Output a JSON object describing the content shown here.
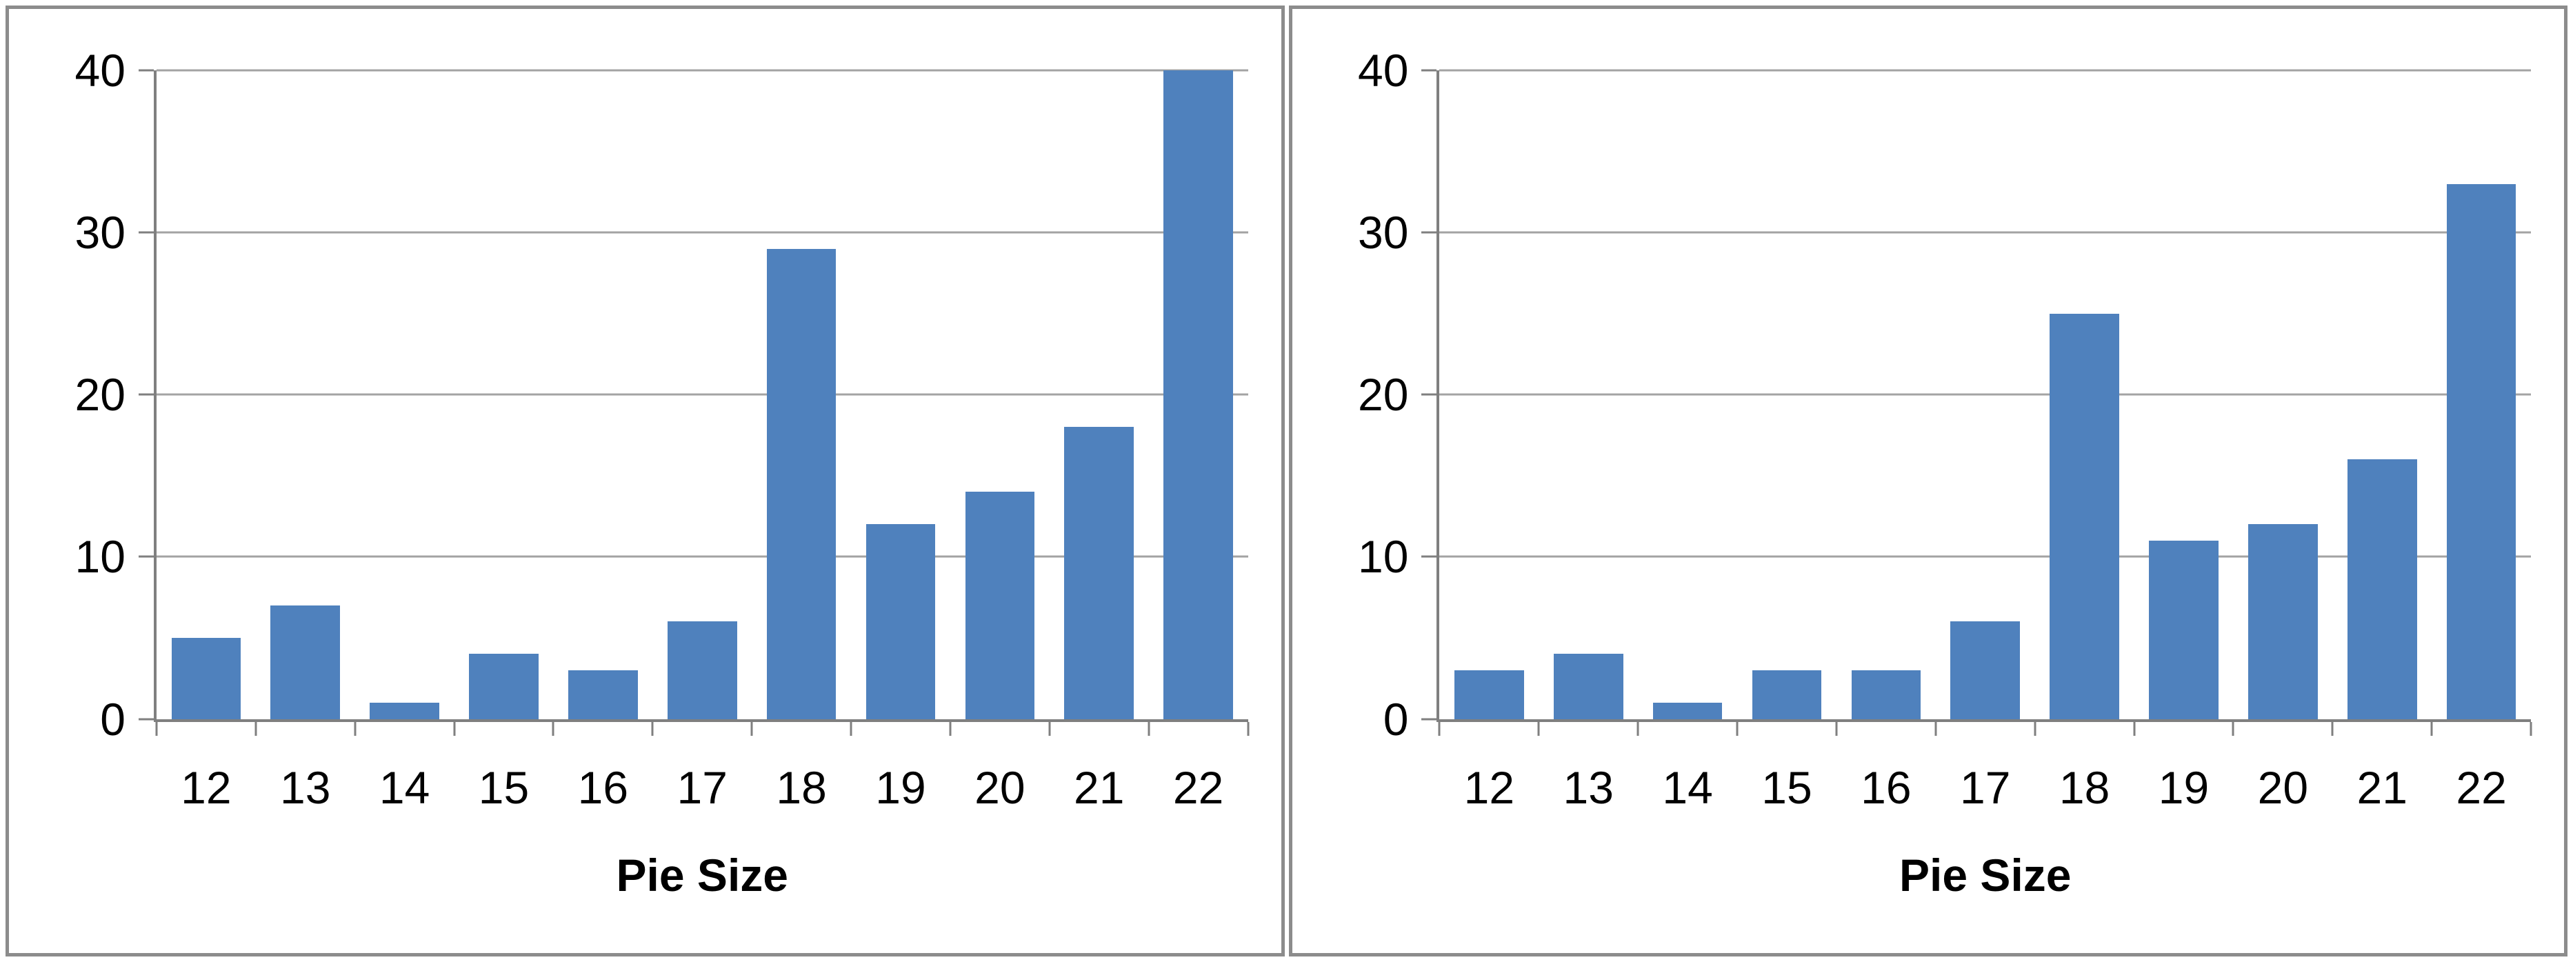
{
  "figure": {
    "background": "#ffffff",
    "panel_border_color": "#8c8c8c",
    "gridline_color": "#a3a3a3",
    "axis_color": "#7f7f7f",
    "text_color": "#000000"
  },
  "chart_data": [
    {
      "type": "bar",
      "title": "",
      "xlabel": "Pie Size",
      "ylabel": "",
      "categories": [
        "12",
        "13",
        "14",
        "15",
        "16",
        "17",
        "18",
        "19",
        "20",
        "21",
        "22"
      ],
      "values": [
        5,
        7,
        1,
        4,
        3,
        6,
        29,
        12,
        14,
        18,
        40
      ],
      "ylim": [
        0,
        40
      ],
      "yticks": [
        0,
        10,
        20,
        30,
        40
      ],
      "grid": true,
      "legend": false,
      "bar_color": "#4F81BD"
    },
    {
      "type": "bar",
      "title": "",
      "xlabel": "Pie Size",
      "ylabel": "",
      "categories": [
        "12",
        "13",
        "14",
        "15",
        "16",
        "17",
        "18",
        "19",
        "20",
        "21",
        "22"
      ],
      "values": [
        3,
        4,
        1,
        3,
        3,
        6,
        25,
        11,
        12,
        16,
        33
      ],
      "ylim": [
        0,
        40
      ],
      "yticks": [
        0,
        10,
        20,
        30,
        40
      ],
      "grid": true,
      "legend": false,
      "bar_color": "#4F81BD"
    }
  ]
}
